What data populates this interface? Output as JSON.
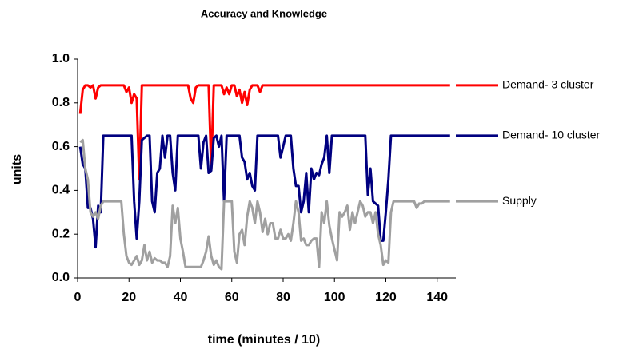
{
  "chart_data": {
    "type": "line",
    "title": "Accuracy and Knowledge",
    "x_label": "time (minutes / 10)",
    "y_label": "units",
    "xlim": [
      0,
      146
    ],
    "xticks": [
      0,
      20,
      40,
      60,
      80,
      100,
      120,
      140
    ],
    "ylim": [
      0,
      1
    ],
    "yticks": [
      {
        "value": 0,
        "label": "0.0"
      },
      {
        "value": 0.2,
        "label": "0.2"
      },
      {
        "value": 0.4,
        "label": "0.4"
      },
      {
        "value": 0.6,
        "label": "0.6"
      },
      {
        "value": 0.8,
        "label": "0.8"
      },
      {
        "value": 1,
        "label": "1.0"
      }
    ],
    "grid": false,
    "legend": "right",
    "x": [
      1,
      2,
      3,
      4,
      5,
      6,
      7,
      8,
      9,
      10,
      11,
      12,
      13,
      14,
      15,
      16,
      17,
      18,
      19,
      20,
      21,
      22,
      23,
      24,
      25,
      26,
      27,
      28,
      29,
      30,
      31,
      32,
      33,
      34,
      35,
      36,
      37,
      38,
      39,
      40,
      41,
      42,
      43,
      44,
      45,
      46,
      47,
      48,
      49,
      50,
      51,
      52,
      53,
      54,
      55,
      56,
      57,
      58,
      59,
      60,
      61,
      62,
      63,
      64,
      65,
      66,
      67,
      68,
      69,
      70,
      71,
      72,
      73,
      74,
      75,
      76,
      77,
      78,
      79,
      80,
      81,
      82,
      83,
      84,
      85,
      86,
      87,
      88,
      89,
      90,
      91,
      92,
      93,
      94,
      95,
      96,
      97,
      98,
      99,
      100,
      101,
      102,
      103,
      104,
      105,
      106,
      107,
      108,
      109,
      110,
      111,
      112,
      113,
      114,
      115,
      116,
      117,
      118,
      119,
      120,
      121,
      122,
      123,
      124,
      125,
      126,
      127,
      128,
      129,
      130,
      131,
      132,
      133,
      134,
      135,
      136,
      137,
      138,
      139,
      140,
      141,
      142,
      143,
      144,
      145
    ],
    "series": [
      {
        "name": "Demand- 3 cluster",
        "color": "#ff0000",
        "values": [
          0.75,
          0.86,
          0.88,
          0.88,
          0.87,
          0.88,
          0.82,
          0.87,
          0.88,
          0.88,
          0.88,
          0.88,
          0.88,
          0.88,
          0.88,
          0.88,
          0.88,
          0.88,
          0.85,
          0.87,
          0.8,
          0.84,
          0.82,
          0.45,
          0.88,
          0.88,
          0.88,
          0.88,
          0.88,
          0.88,
          0.88,
          0.88,
          0.88,
          0.88,
          0.88,
          0.88,
          0.88,
          0.88,
          0.88,
          0.88,
          0.88,
          0.88,
          0.88,
          0.82,
          0.8,
          0.87,
          0.88,
          0.88,
          0.88,
          0.88,
          0.88,
          0.5,
          0.88,
          0.88,
          0.88,
          0.88,
          0.84,
          0.87,
          0.84,
          0.88,
          0.88,
          0.83,
          0.86,
          0.8,
          0.85,
          0.79,
          0.86,
          0.88,
          0.88,
          0.88,
          0.85,
          0.88,
          0.88,
          0.88,
          0.88,
          0.88,
          0.88,
          0.88,
          0.88,
          0.88,
          0.88,
          0.88,
          0.88,
          0.88,
          0.88,
          0.88,
          0.88,
          0.88,
          0.88,
          0.88,
          0.88,
          0.88,
          0.88,
          0.88,
          0.88,
          0.88,
          0.88,
          0.88,
          0.88,
          0.88,
          0.88,
          0.88,
          0.88,
          0.88,
          0.88,
          0.88,
          0.88,
          0.88,
          0.88,
          0.88,
          0.88,
          0.88,
          0.88,
          0.88,
          0.88,
          0.88,
          0.88,
          0.88,
          0.88,
          0.88,
          0.88,
          0.88,
          0.88,
          0.88,
          0.88,
          0.88,
          0.88,
          0.88,
          0.88,
          0.88,
          0.88,
          0.88,
          0.88,
          0.88,
          0.88,
          0.88,
          0.88,
          0.88,
          0.88,
          0.88,
          0.88,
          0.88,
          0.88,
          0.88,
          0.88
        ]
      },
      {
        "name": "Demand- 10 cluster",
        "color": "#000080",
        "values": [
          0.6,
          0.52,
          0.5,
          0.32,
          0.32,
          0.27,
          0.14,
          0.33,
          0.3,
          0.65,
          0.65,
          0.65,
          0.65,
          0.65,
          0.65,
          0.65,
          0.65,
          0.65,
          0.65,
          0.65,
          0.65,
          0.35,
          0.18,
          0.35,
          0.63,
          0.64,
          0.65,
          0.65,
          0.35,
          0.3,
          0.48,
          0.5,
          0.65,
          0.55,
          0.65,
          0.65,
          0.48,
          0.4,
          0.65,
          0.65,
          0.65,
          0.65,
          0.65,
          0.65,
          0.65,
          0.65,
          0.65,
          0.5,
          0.62,
          0.65,
          0.48,
          0.49,
          0.64,
          0.65,
          0.6,
          0.65,
          0.35,
          0.65,
          0.65,
          0.65,
          0.65,
          0.65,
          0.65,
          0.55,
          0.53,
          0.45,
          0.48,
          0.42,
          0.4,
          0.65,
          0.65,
          0.65,
          0.65,
          0.65,
          0.65,
          0.65,
          0.65,
          0.65,
          0.55,
          0.6,
          0.65,
          0.65,
          0.65,
          0.5,
          0.42,
          0.42,
          0.3,
          0.35,
          0.48,
          0.3,
          0.5,
          0.45,
          0.48,
          0.47,
          0.52,
          0.55,
          0.65,
          0.48,
          0.65,
          0.65,
          0.65,
          0.65,
          0.65,
          0.65,
          0.65,
          0.65,
          0.65,
          0.65,
          0.65,
          0.65,
          0.65,
          0.65,
          0.38,
          0.5,
          0.35,
          0.34,
          0.33,
          0.17,
          0.17,
          0.3,
          0.45,
          0.65,
          0.65,
          0.65,
          0.65,
          0.65,
          0.65,
          0.65,
          0.65,
          0.65,
          0.65,
          0.65,
          0.65,
          0.65,
          0.65,
          0.65,
          0.65,
          0.65,
          0.65,
          0.65,
          0.65,
          0.65,
          0.65,
          0.65,
          0.65
        ]
      },
      {
        "name": "Supply",
        "color": "#a0a0a0",
        "values": [
          0.62,
          0.63,
          0.5,
          0.45,
          0.3,
          0.28,
          0.3,
          0.27,
          0.33,
          0.35,
          0.35,
          0.35,
          0.35,
          0.35,
          0.35,
          0.35,
          0.35,
          0.2,
          0.1,
          0.07,
          0.06,
          0.08,
          0.1,
          0.06,
          0.08,
          0.15,
          0.08,
          0.12,
          0.07,
          0.09,
          0.08,
          0.08,
          0.07,
          0.07,
          0.05,
          0.1,
          0.33,
          0.25,
          0.32,
          0.18,
          0.12,
          0.05,
          0.05,
          0.05,
          0.05,
          0.05,
          0.05,
          0.05,
          0.08,
          0.12,
          0.19,
          0.1,
          0.06,
          0.08,
          0.05,
          0.04,
          0.35,
          0.35,
          0.35,
          0.35,
          0.12,
          0.07,
          0.2,
          0.22,
          0.15,
          0.28,
          0.35,
          0.32,
          0.25,
          0.35,
          0.3,
          0.21,
          0.27,
          0.2,
          0.25,
          0.25,
          0.18,
          0.18,
          0.22,
          0.18,
          0.18,
          0.2,
          0.17,
          0.25,
          0.35,
          0.3,
          0.17,
          0.18,
          0.15,
          0.15,
          0.17,
          0.18,
          0.18,
          0.05,
          0.3,
          0.25,
          0.35,
          0.24,
          0.18,
          0.13,
          0.08,
          0.3,
          0.28,
          0.3,
          0.33,
          0.22,
          0.3,
          0.25,
          0.3,
          0.35,
          0.33,
          0.28,
          0.3,
          0.3,
          0.25,
          0.3,
          0.2,
          0.15,
          0.06,
          0.08,
          0.07,
          0.3,
          0.35,
          0.35,
          0.35,
          0.35,
          0.35,
          0.35,
          0.35,
          0.35,
          0.35,
          0.32,
          0.34,
          0.34,
          0.35,
          0.35,
          0.35,
          0.35,
          0.35,
          0.35,
          0.35,
          0.35,
          0.35,
          0.35,
          0.35
        ]
      }
    ]
  }
}
